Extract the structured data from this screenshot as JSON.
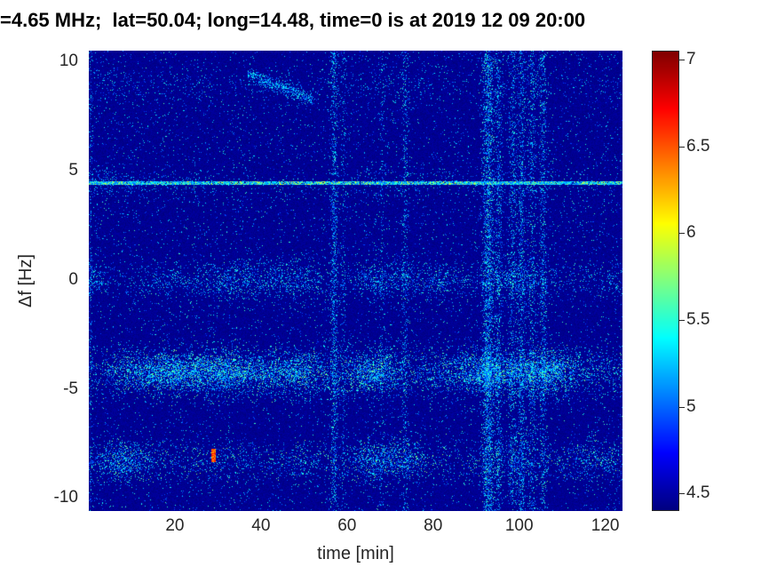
{
  "chart_data": {
    "type": "heatmap",
    "title": "=4.65 MHz;  lat=50.04; long=14.48, time=0 is at 2019 12 09 20:00",
    "xlabel": "time [min]",
    "ylabel": "Δf [Hz]",
    "xlim": [
      0,
      124
    ],
    "ylim": [
      -10.6,
      10.5
    ],
    "xticks": [
      20,
      40,
      60,
      80,
      100,
      120
    ],
    "yticks": [
      10,
      5,
      0,
      -5,
      -10
    ],
    "grid": false,
    "legend": false,
    "colorbar": {
      "colormap": "jet",
      "position": "right",
      "clim": [
        4.4,
        7.05
      ],
      "ticks": [
        4.5,
        5,
        5.5,
        6,
        6.5,
        7
      ]
    },
    "noise": {
      "base": 4.4,
      "base_jitter": 0.1,
      "speckle_probability": 0.03,
      "speckle_vmin": 4.88,
      "speckle_vspan": 0.75
    },
    "features": {
      "horizontal_lines": [
        {
          "df": 4.42,
          "halfwidth_hz": 0.09,
          "prob": 0.85,
          "vmin": 5.05,
          "vspan": 1.0
        }
      ],
      "horizontal_bands": [
        {
          "df": 8.9,
          "sigma_hz": 0.45,
          "density": 0.05,
          "vmin": 4.95,
          "vspan": 0.6
        },
        {
          "df": 4.42,
          "sigma_hz": 0.4,
          "density": 0.07,
          "vmin": 4.95,
          "vspan": 0.6
        },
        {
          "df": 0.0,
          "sigma_hz": 0.45,
          "density": 0.17,
          "vmin": 4.95,
          "vspan": 0.7
        },
        {
          "df": -4.25,
          "sigma_hz": 0.55,
          "density": 0.36,
          "vmin": 4.95,
          "vspan": 0.85
        },
        {
          "df": -8.3,
          "sigma_hz": 0.5,
          "density": 0.3,
          "vmin": 4.95,
          "vspan": 0.85
        }
      ],
      "vertical_stripes": [
        {
          "t": 0.4,
          "sigma_min": 0.3,
          "density": 0.12,
          "vmin": 4.95,
          "vspan": 0.6
        },
        {
          "t": 57,
          "sigma_min": 0.5,
          "density": 0.3,
          "vmin": 4.95,
          "vspan": 0.7
        },
        {
          "t": 59.2,
          "sigma_min": 0.35,
          "density": 0.1,
          "vmin": 4.95,
          "vspan": 0.6
        },
        {
          "t": 68,
          "sigma_min": 0.35,
          "density": 0.08,
          "vmin": 4.95,
          "vspan": 0.6
        },
        {
          "t": 73.5,
          "sigma_min": 0.45,
          "density": 0.16,
          "vmin": 4.95,
          "vspan": 0.7
        },
        {
          "t": 92.8,
          "sigma_min": 0.8,
          "density": 0.42,
          "vmin": 4.95,
          "vspan": 0.75
        },
        {
          "t": 95.2,
          "sigma_min": 0.5,
          "density": 0.22,
          "vmin": 4.95,
          "vspan": 0.7
        },
        {
          "t": 98.5,
          "sigma_min": 0.6,
          "density": 0.2,
          "vmin": 4.95,
          "vspan": 0.7
        },
        {
          "t": 100.6,
          "sigma_min": 0.5,
          "density": 0.26,
          "vmin": 4.95,
          "vspan": 0.7
        },
        {
          "t": 103,
          "sigma_min": 0.6,
          "density": 0.18,
          "vmin": 4.95,
          "vspan": 0.7
        },
        {
          "t": 105.6,
          "sigma_min": 0.5,
          "density": 0.24,
          "vmin": 4.95,
          "vspan": 0.7
        }
      ],
      "diagonal_streaks": [
        {
          "t0": 37,
          "df0": 9.4,
          "t1": 52,
          "df1": 8.3,
          "sigma_hz": 0.18,
          "density": 0.5,
          "vmin": 5.0,
          "vspan": 0.55
        }
      ],
      "hot_spots": [
        {
          "t": 29,
          "df": -8.05,
          "radius_min": 0.5,
          "radius_hz": 0.3,
          "vmin": 6.2,
          "vspan": 0.6
        }
      ]
    }
  }
}
